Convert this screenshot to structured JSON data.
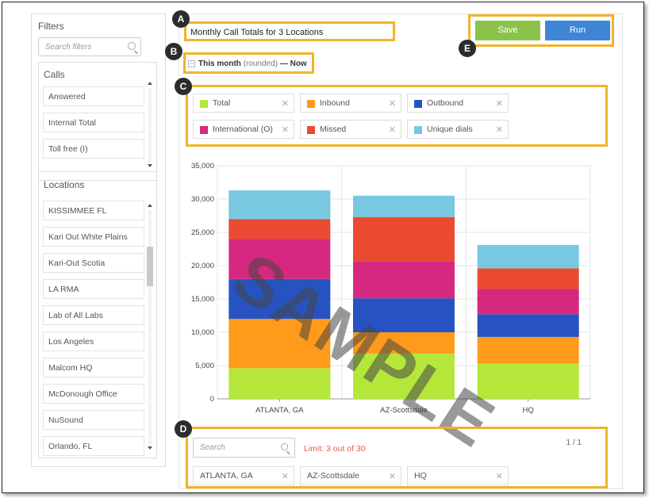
{
  "sidebar": {
    "title": "Filters",
    "search_placeholder": "Search filters",
    "calls": {
      "title": "Calls",
      "items": [
        "Answered",
        "Internal Total",
        "Toll free (I)"
      ]
    },
    "locations": {
      "title": "Locations",
      "items": [
        "KISSIMMEE FL",
        "Kari Out White Plains",
        "Kari-Out Scotia",
        "LA RMA",
        "Lab of All Labs",
        "Los Angeles",
        "Malcom HQ",
        "McDonough Office",
        "NuSound",
        "Orlando, FL"
      ]
    }
  },
  "report": {
    "title": "Monthly Call Totals for 3 Locations",
    "date_range": {
      "period": "This month",
      "qualifier": "(rounded)",
      "separator": "—",
      "end": "Now"
    }
  },
  "toolbar": {
    "save_label": "Save",
    "run_label": "Run"
  },
  "series_chips": [
    {
      "label": "Total",
      "color": "#b5e73a"
    },
    {
      "label": "Inbound",
      "color": "#ff9a1a"
    },
    {
      "label": "Outbound",
      "color": "#2753c2"
    },
    {
      "label": "International (O)",
      "color": "#d6287e"
    },
    {
      "label": "Missed",
      "color": "#ea4a32"
    },
    {
      "label": "Unique dials",
      "color": "#79c8e2"
    }
  ],
  "locations_panel": {
    "search_placeholder": "Search",
    "limit_text": "Limit: 3 out of 30",
    "pager": "1 / 1",
    "selected": [
      "ATLANTA, GA",
      "AZ-Scottsdale",
      "HQ"
    ]
  },
  "badges": [
    "A",
    "B",
    "C",
    "D",
    "E"
  ],
  "watermark": "SAMPLE",
  "chart_data": {
    "type": "bar",
    "stacked": true,
    "categories": [
      "ATLANTA, GA",
      "AZ-Scottsdale",
      "HQ"
    ],
    "ylim": [
      0,
      35000
    ],
    "yticks": [
      "0",
      "5,000",
      "10,000",
      "15,000",
      "20,000",
      "25,000",
      "30,000",
      "35,000"
    ],
    "grid": true,
    "series": [
      {
        "name": "Total",
        "color": "#b5e73a",
        "values": [
          4600,
          6800,
          5300
        ]
      },
      {
        "name": "Inbound",
        "color": "#ff9a1a",
        "values": [
          7400,
          3200,
          4000
        ]
      },
      {
        "name": "Outbound",
        "color": "#2753c2",
        "values": [
          6000,
          5100,
          3400
        ]
      },
      {
        "name": "International (O)",
        "color": "#d6287e",
        "values": [
          6000,
          5500,
          3800
        ]
      },
      {
        "name": "Missed",
        "color": "#ea4a32",
        "values": [
          3000,
          6700,
          3100
        ]
      },
      {
        "name": "Unique dials",
        "color": "#79c8e2",
        "values": [
          4300,
          3200,
          3500
        ]
      }
    ]
  }
}
